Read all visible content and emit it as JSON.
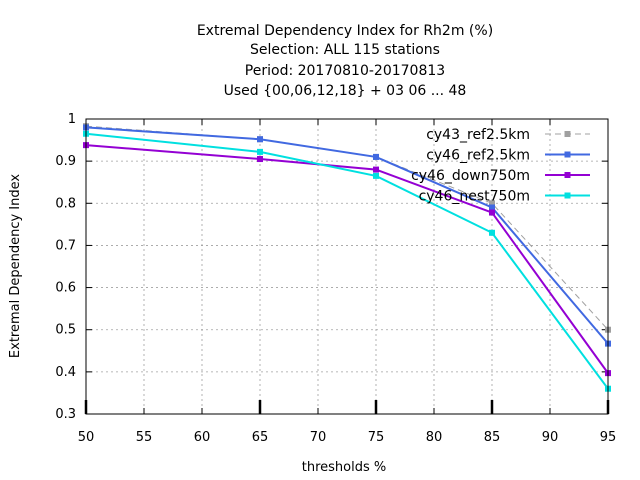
{
  "chart_data": {
    "type": "line",
    "title_lines": [
      "Extremal Dependency Index  for Rh2m (%)",
      "Selection: ALL    115 stations",
      "Period: 20170810-20170813",
      "Used {00,06,12,18} + 03 06 ... 48"
    ],
    "xlabel": "thresholds %",
    "ylabel": "Extremal Dependency Index",
    "xlim": [
      50,
      95
    ],
    "ylim": [
      0.3,
      1.0
    ],
    "xticks": [
      50,
      55,
      60,
      65,
      70,
      75,
      80,
      85,
      90,
      95
    ],
    "yticks": [
      0.3,
      0.4,
      0.5,
      0.6,
      0.7,
      0.8,
      0.9,
      1.0
    ],
    "ytick_labels": [
      "0.3",
      "0.4",
      "0.5",
      "0.6",
      "0.7",
      "0.8",
      "0.9",
      "1"
    ],
    "x": [
      50,
      65,
      75,
      85,
      95
    ],
    "grid": true,
    "legend_position": "top-right",
    "series": [
      {
        "name": "cy43_ref2.5km",
        "values": [
          0.983,
          0.952,
          0.91,
          0.8,
          0.5
        ],
        "color": "#a0a0a0",
        "dashed": true
      },
      {
        "name": "cy46_ref2.5km",
        "values": [
          0.98,
          0.952,
          0.91,
          0.79,
          0.467
        ],
        "color": "#4169e1",
        "dashed": false
      },
      {
        "name": "cy46_down750m",
        "values": [
          0.938,
          0.905,
          0.88,
          0.778,
          0.397
        ],
        "color": "#9400d3",
        "dashed": false
      },
      {
        "name": "cy46_nest750m",
        "values": [
          0.965,
          0.922,
          0.865,
          0.73,
          0.36
        ],
        "color": "#00e0e0",
        "dashed": false
      }
    ]
  }
}
